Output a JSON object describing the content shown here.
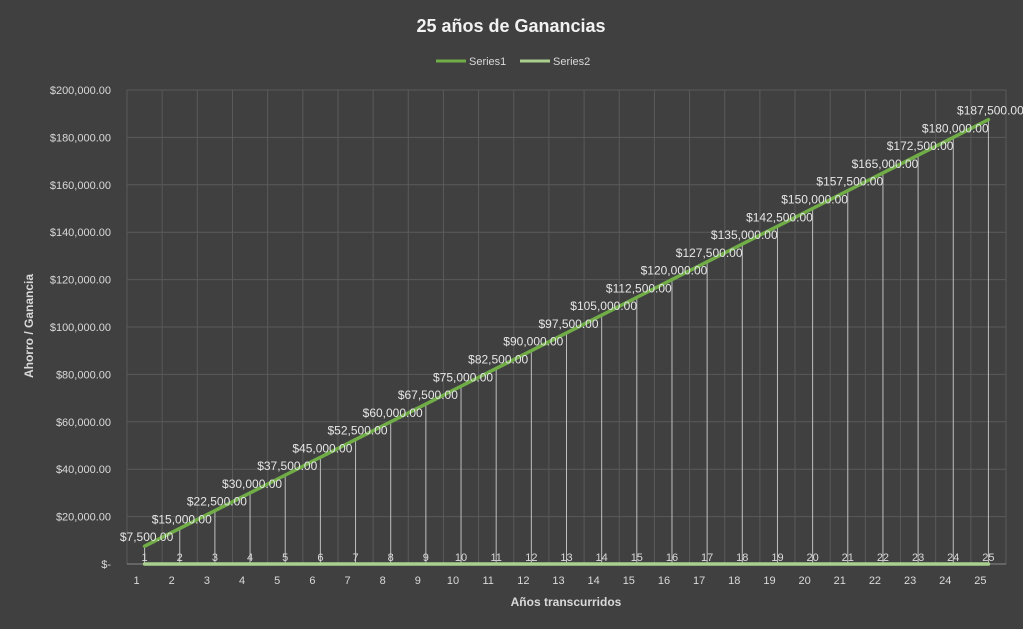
{
  "chart_data": {
    "type": "line",
    "title": "25 años de Ganancias",
    "xlabel": "Años transcurridos",
    "ylabel": "Ahorro / Ganancia",
    "ylim": [
      0,
      200000
    ],
    "yticks": [
      {
        "value": 0,
        "label": "$-"
      },
      {
        "value": 20000,
        "label": "$20,000.00"
      },
      {
        "value": 40000,
        "label": "$40,000.00"
      },
      {
        "value": 60000,
        "label": "$60,000.00"
      },
      {
        "value": 80000,
        "label": "$80,000.00"
      },
      {
        "value": 100000,
        "label": "$100,000.00"
      },
      {
        "value": 120000,
        "label": "$120,000.00"
      },
      {
        "value": 140000,
        "label": "$140,000.00"
      },
      {
        "value": 160000,
        "label": "$160,000.00"
      },
      {
        "value": 180000,
        "label": "$180,000.00"
      },
      {
        "value": 200000,
        "label": "$200,000.00"
      }
    ],
    "categories": [
      "1",
      "2",
      "3",
      "4",
      "5",
      "6",
      "7",
      "8",
      "9",
      "10",
      "11",
      "12",
      "13",
      "14",
      "15",
      "16",
      "17",
      "18",
      "19",
      "20",
      "21",
      "22",
      "23",
      "24",
      "25"
    ],
    "legend_position": "top",
    "grid": true,
    "drop_lines": true,
    "series": [
      {
        "name": "Series1",
        "color": "#70ad47",
        "values": [
          7500,
          15000,
          22500,
          30000,
          37500,
          45000,
          52500,
          60000,
          67500,
          75000,
          82500,
          90000,
          97500,
          105000,
          112500,
          120000,
          127500,
          135000,
          142500,
          150000,
          157500,
          165000,
          172500,
          180000,
          187500
        ],
        "data_labels": [
          "$7,500.00",
          "$15,000.00",
          "$22,500.00",
          "$30,000.00",
          "$37,500.00",
          "$45,000.00",
          "$52,500.00",
          "$60,000.00",
          "$67,500.00",
          "$75,000.00",
          "$82,500.00",
          "$90,000.00",
          "$97,500.00",
          "$105,000.00",
          "$112,500.00",
          "$120,000.00",
          "$127,500.00",
          "$135,000.00",
          "$142,500.00",
          "$150,000.00",
          "$157,500.00",
          "$165,000.00",
          "$172,500.00",
          "$180,000.00",
          "$187,500.00"
        ]
      },
      {
        "name": "Series2",
        "color": "#a9d08e",
        "values": [
          1,
          2,
          3,
          4,
          5,
          6,
          7,
          8,
          9,
          10,
          11,
          12,
          13,
          14,
          15,
          16,
          17,
          18,
          19,
          20,
          21,
          22,
          23,
          24,
          25
        ],
        "data_labels": [
          "1",
          "2",
          "3",
          "4",
          "5",
          "6",
          "7",
          "8",
          "9",
          "10",
          "11",
          "12",
          "13",
          "14",
          "15",
          "16",
          "17",
          "18",
          "19",
          "20",
          "21",
          "22",
          "23",
          "24",
          "25"
        ]
      }
    ]
  }
}
